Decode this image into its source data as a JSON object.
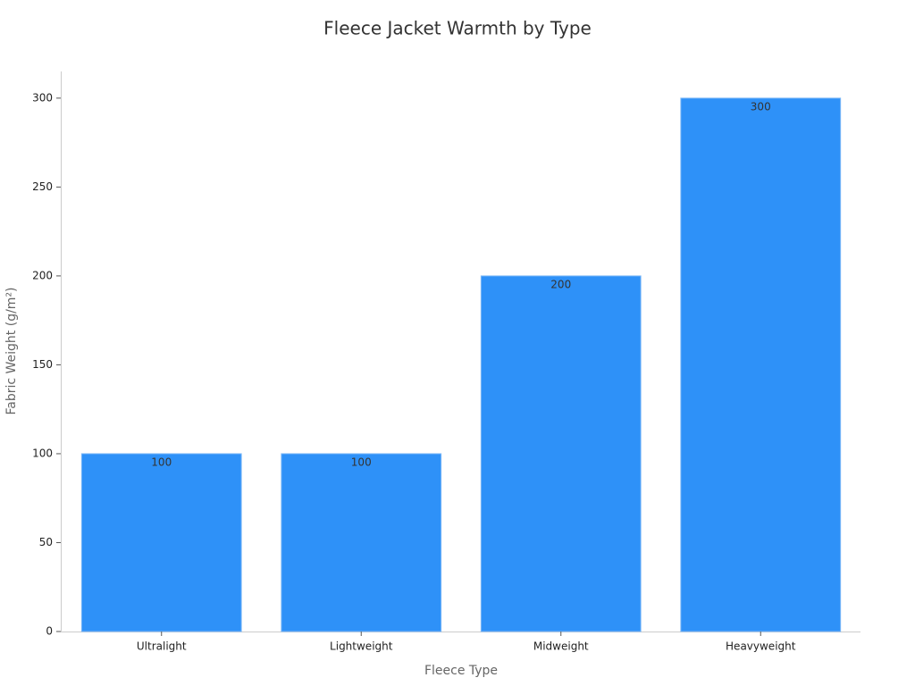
{
  "chart_data": {
    "type": "bar",
    "title": "Fleece Jacket Warmth by Type",
    "x_label": "Fleece Type",
    "y_label": "Fabric Weight (g/m²)",
    "categories": [
      "Ultralight",
      "Lightweight",
      "Midweight",
      "Heavyweight"
    ],
    "values": [
      100,
      100,
      200,
      300
    ],
    "color": "#2e91f8",
    "ylim": [
      0,
      315
    ],
    "yticks": [
      0,
      50,
      100,
      150,
      200,
      250,
      300
    ],
    "grid": false
  }
}
